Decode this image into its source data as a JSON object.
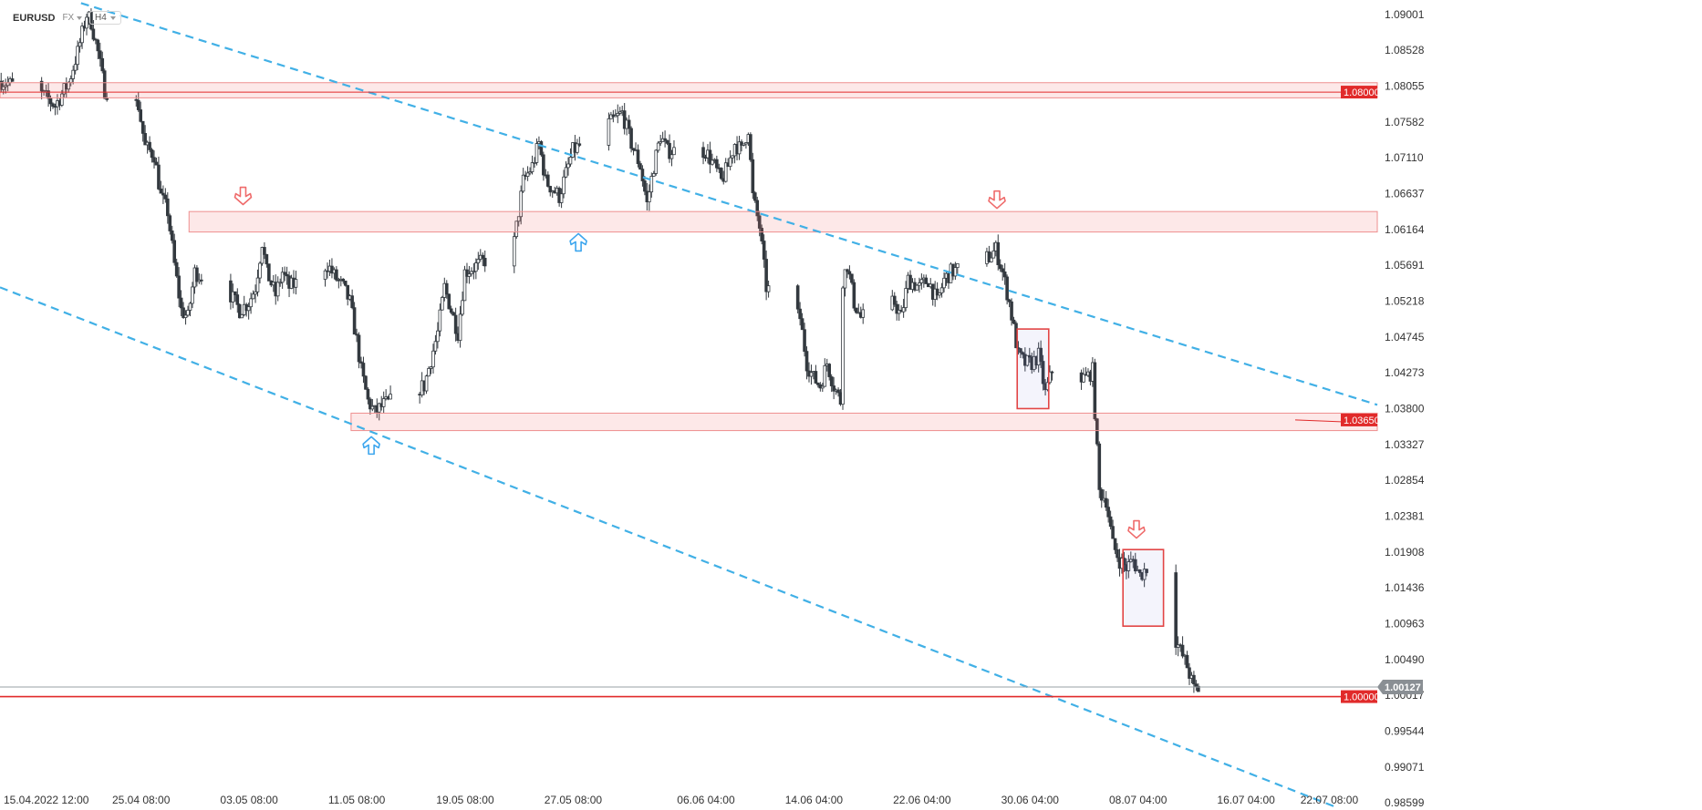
{
  "header": {
    "symbol": "EURUSD",
    "market": "FX",
    "timeframe": "H4"
  },
  "colors": {
    "up": "#ffffff",
    "down": "#33393f",
    "wick": "#33393f",
    "channel": "#41b0e6",
    "zone_fill": "rgba(241,110,110,0.16)",
    "zone_stroke": "#ee8f8f",
    "level": "#e12a2a",
    "box": "#e24545",
    "arrow_down": "#ef6b6b",
    "arrow_up": "#3da6ee",
    "current_tag": "#8a8f94"
  },
  "chart_data": {
    "type": "candlestick",
    "instrument": "EURUSD",
    "timeframe": "H4",
    "x_axis": {
      "range": [
        "2022-04-15T00:00",
        "2022-07-26T00:00"
      ],
      "ticks": [
        {
          "t": "2022-04-15T12:00",
          "label": "15.04.2022  12:00"
        },
        {
          "t": "2022-04-25T08:00",
          "label": "25.04  08:00"
        },
        {
          "t": "2022-05-03T08:00",
          "label": "03.05  08:00"
        },
        {
          "t": "2022-05-11T08:00",
          "label": "11.05  08:00"
        },
        {
          "t": "2022-05-19T08:00",
          "label": "19.05  08:00"
        },
        {
          "t": "2022-05-27T08:00",
          "label": "27.05  08:00"
        },
        {
          "t": "2022-06-06T04:00",
          "label": "06.06  04:00"
        },
        {
          "t": "2022-06-14T04:00",
          "label": "14.06  04:00"
        },
        {
          "t": "2022-06-22T04:00",
          "label": "22.06  04:00"
        },
        {
          "t": "2022-06-30T04:00",
          "label": "30.06  04:00"
        },
        {
          "t": "2022-07-08T04:00",
          "label": "08.07  04:00"
        },
        {
          "t": "2022-07-16T04:00",
          "label": "16.07  04:00"
        },
        {
          "t": "2022-07-22T08:00",
          "label": "22.07  08:00"
        }
      ]
    },
    "y_axis": {
      "range": [
        0.98504,
        1.09191
      ],
      "ticks": [
        "1.09001",
        "1.08528",
        "1.08055",
        "1.07582",
        "1.07110",
        "1.06637",
        "1.06164",
        "1.05691",
        "1.05218",
        "1.04745",
        "1.04273",
        "1.03800",
        "1.03327",
        "1.02854",
        "1.02381",
        "1.01908",
        "1.01436",
        "1.00963",
        "1.00490",
        "1.00017",
        "0.99544",
        "0.99071",
        "0.98599"
      ]
    },
    "price_path": [
      [
        "2022-04-15T00:00",
        1.0812
      ],
      [
        "2022-04-18T00:00",
        1.0795
      ],
      [
        "2022-04-19T00:00",
        1.078
      ],
      [
        "2022-04-20T00:00",
        1.081
      ],
      [
        "2022-04-20T16:00",
        1.085
      ],
      [
        "2022-04-21T08:00",
        1.09
      ],
      [
        "2022-04-21T16:00",
        1.089
      ],
      [
        "2022-04-22T04:00",
        1.085
      ],
      [
        "2022-04-22T16:00",
        1.08
      ],
      [
        "2022-04-25T04:00",
        1.078
      ],
      [
        "2022-04-25T16:00",
        1.0725
      ],
      [
        "2022-04-26T08:00",
        1.0715
      ],
      [
        "2022-04-26T20:00",
        1.066
      ],
      [
        "2022-04-27T08:00",
        1.064
      ],
      [
        "2022-04-27T20:00",
        1.057
      ],
      [
        "2022-04-28T08:00",
        1.051
      ],
      [
        "2022-04-28T20:00",
        1.05
      ],
      [
        "2022-04-29T08:00",
        1.056
      ],
      [
        "2022-05-02T00:00",
        1.053
      ],
      [
        "2022-05-02T16:00",
        1.051
      ],
      [
        "2022-05-03T08:00",
        1.052
      ],
      [
        "2022-05-03T20:00",
        1.054
      ],
      [
        "2022-05-04T08:00",
        1.06
      ],
      [
        "2022-05-04T16:00",
        1.056
      ],
      [
        "2022-05-05T08:00",
        1.053
      ],
      [
        "2022-05-05T20:00",
        1.056
      ],
      [
        "2022-05-06T08:00",
        1.054
      ],
      [
        "2022-05-09T04:00",
        1.057
      ],
      [
        "2022-05-09T16:00",
        1.0555
      ],
      [
        "2022-05-10T08:00",
        1.054
      ],
      [
        "2022-05-10T20:00",
        1.052
      ],
      [
        "2022-05-11T08:00",
        1.047
      ],
      [
        "2022-05-11T16:00",
        1.043
      ],
      [
        "2022-05-12T04:00",
        1.039
      ],
      [
        "2022-05-12T16:00",
        1.0375
      ],
      [
        "2022-05-13T08:00",
        1.0385
      ],
      [
        "2022-05-16T08:00",
        1.041
      ],
      [
        "2022-05-17T08:00",
        1.048
      ],
      [
        "2022-05-17T20:00",
        1.054
      ],
      [
        "2022-05-18T08:00",
        1.051
      ],
      [
        "2022-05-18T20:00",
        1.048
      ],
      [
        "2022-05-19T08:00",
        1.056
      ],
      [
        "2022-05-20T08:00",
        1.057
      ],
      [
        "2022-05-23T00:00",
        1.06
      ],
      [
        "2022-05-23T16:00",
        1.068
      ],
      [
        "2022-05-24T08:00",
        1.07
      ],
      [
        "2022-05-24T20:00",
        1.073
      ],
      [
        "2022-05-25T08:00",
        1.068
      ],
      [
        "2022-05-26T08:00",
        1.066
      ],
      [
        "2022-05-27T08:00",
        1.072
      ],
      [
        "2022-05-30T08:00",
        1.076
      ],
      [
        "2022-05-31T00:00",
        1.077
      ],
      [
        "2022-05-31T16:00",
        1.073
      ],
      [
        "2022-06-01T08:00",
        1.07
      ],
      [
        "2022-06-01T20:00",
        1.065
      ],
      [
        "2022-06-02T08:00",
        1.07
      ],
      [
        "2022-06-02T20:00",
        1.074
      ],
      [
        "2022-06-03T08:00",
        1.072
      ],
      [
        "2022-06-06T04:00",
        1.072
      ],
      [
        "2022-06-06T20:00",
        1.07
      ],
      [
        "2022-06-07T08:00",
        1.068
      ],
      [
        "2022-06-07T20:00",
        1.07
      ],
      [
        "2022-06-08T08:00",
        1.073
      ],
      [
        "2022-06-08T20:00",
        1.072
      ],
      [
        "2022-06-09T08:00",
        1.075
      ],
      [
        "2022-06-09T16:00",
        1.066
      ],
      [
        "2022-06-10T04:00",
        1.062
      ],
      [
        "2022-06-10T16:00",
        1.054
      ],
      [
        "2022-06-13T04:00",
        1.05
      ],
      [
        "2022-06-13T16:00",
        1.044
      ],
      [
        "2022-06-14T04:00",
        1.042
      ],
      [
        "2022-06-14T16:00",
        1.041
      ],
      [
        "2022-06-15T04:00",
        1.044
      ],
      [
        "2022-06-15T16:00",
        1.041
      ],
      [
        "2022-06-16T04:00",
        1.039
      ],
      [
        "2022-06-16T08:00",
        1.055
      ],
      [
        "2022-06-16T16:00",
        1.057
      ],
      [
        "2022-06-17T04:00",
        1.052
      ],
      [
        "2022-06-17T16:00",
        1.05
      ],
      [
        "2022-06-20T04:00",
        1.052
      ],
      [
        "2022-06-20T16:00",
        1.05
      ],
      [
        "2022-06-21T04:00",
        1.055
      ],
      [
        "2022-06-22T00:00",
        1.054
      ],
      [
        "2022-06-22T16:00",
        1.055
      ],
      [
        "2022-06-23T08:00",
        1.052
      ],
      [
        "2022-06-23T20:00",
        1.055
      ],
      [
        "2022-06-24T08:00",
        1.056
      ],
      [
        "2022-06-27T04:00",
        1.058
      ],
      [
        "2022-06-27T16:00",
        1.059
      ],
      [
        "2022-06-28T04:00",
        1.056
      ],
      [
        "2022-06-28T16:00",
        1.052
      ],
      [
        "2022-06-29T08:00",
        1.045
      ],
      [
        "2022-06-29T20:00",
        1.044
      ],
      [
        "2022-06-30T08:00",
        1.044
      ],
      [
        "2022-06-30T20:00",
        1.045
      ],
      [
        "2022-07-01T08:00",
        1.04
      ],
      [
        "2022-07-01T20:00",
        1.043
      ],
      [
        "2022-07-04T08:00",
        1.042
      ],
      [
        "2022-07-04T20:00",
        1.043
      ],
      [
        "2022-07-05T08:00",
        1.027
      ],
      [
        "2022-07-05T20:00",
        1.026
      ],
      [
        "2022-07-06T08:00",
        1.02
      ],
      [
        "2022-07-06T20:00",
        1.018
      ],
      [
        "2022-07-07T08:00",
        1.017
      ],
      [
        "2022-07-07T20:00",
        1.018
      ],
      [
        "2022-07-08T08:00",
        1.016
      ],
      [
        "2022-07-08T20:00",
        1.017
      ],
      [
        "2022-07-11T08:00",
        1.006
      ],
      [
        "2022-07-11T20:00",
        1.004
      ],
      [
        "2022-07-12T08:00",
        1.001
      ],
      [
        "2022-07-12T16:00",
        1.001
      ]
    ],
    "candle_minutes": 240,
    "last_price": "1.00127",
    "horizontal_levels": [
      {
        "price": 1.08,
        "label": "1.08000"
      },
      {
        "price": 1.0365,
        "label": "1.03650"
      },
      {
        "price": 1.0,
        "label": "1.00000"
      }
    ],
    "zones": [
      {
        "from": "2022-04-15T00:00",
        "to": "2022-07-26T00:00",
        "low": 1.079,
        "high": 1.081
      },
      {
        "from": "2022-04-29T00:00",
        "to": "2022-07-26T00:00",
        "low": 1.0613,
        "high": 1.064
      },
      {
        "from": "2022-05-11T00:00",
        "to": "2022-07-26T00:00",
        "low": 1.0351,
        "high": 1.0374
      }
    ],
    "channel_lines": [
      {
        "p1": [
          "2022-04-21T00:00",
          1.0915
        ],
        "p2": [
          "2022-07-26T00:00",
          1.0385
        ]
      },
      {
        "p1": [
          "2022-04-15T00:00",
          1.054
        ],
        "p2": [
          "2022-07-22T20:00",
          0.9855
        ]
      }
    ],
    "boxes": [
      {
        "from": "2022-06-29T08:00",
        "to": "2022-07-01T16:00",
        "low": 1.038,
        "high": 1.0485
      },
      {
        "from": "2022-07-07T04:00",
        "to": "2022-07-10T04:00",
        "low": 1.0093,
        "high": 1.0194
      }
    ],
    "arrows": [
      {
        "t": "2022-05-03T00:00",
        "price": 1.066,
        "dir": "down"
      },
      {
        "t": "2022-05-27T20:00",
        "price": 1.06,
        "dir": "up"
      },
      {
        "t": "2022-06-27T20:00",
        "price": 1.0655,
        "dir": "down"
      },
      {
        "t": "2022-07-08T04:00",
        "price": 1.022,
        "dir": "down"
      },
      {
        "t": "2022-05-12T12:00",
        "price": 1.0332,
        "dir": "up"
      }
    ]
  }
}
